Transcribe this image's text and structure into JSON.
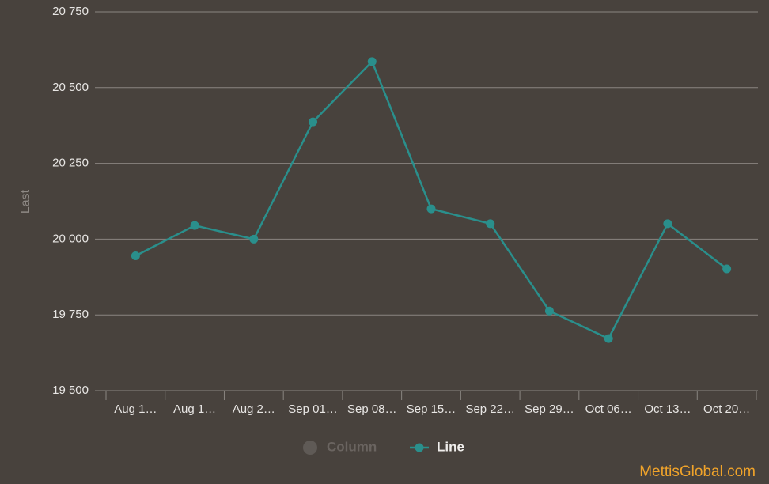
{
  "chart_data": {
    "type": "line",
    "y_label": "Last",
    "categories": [
      "Aug 1…",
      "Aug 1…",
      "Aug 2…",
      "Sep 01…",
      "Sep 08…",
      "Sep 15…",
      "Sep 22…",
      "Sep 29…",
      "Oct 06…",
      "Oct 13…",
      "Oct 20…"
    ],
    "series": [
      {
        "name": "Column",
        "color": "#5f5a56",
        "visible": false,
        "values": [
          null,
          null,
          null,
          null,
          null,
          null,
          null,
          null,
          null,
          null,
          null
        ]
      },
      {
        "name": "Line",
        "color": "#2a8f8c",
        "visible": true,
        "values": [
          19945,
          20045,
          20000,
          20387,
          20586,
          20100,
          20051,
          19763,
          19672,
          20051,
          19902
        ]
      }
    ],
    "ylim": [
      19500,
      20750
    ],
    "yticks": [
      {
        "value": 19500,
        "label": "19 500"
      },
      {
        "value": 19750,
        "label": "19 750"
      },
      {
        "value": 20000,
        "label": "20 000"
      },
      {
        "value": 20250,
        "label": "20 250"
      },
      {
        "value": 20500,
        "label": "20 500"
      },
      {
        "value": 20750,
        "label": "20 750"
      }
    ],
    "grid": true,
    "watermark": "MettisGlobal.com"
  }
}
